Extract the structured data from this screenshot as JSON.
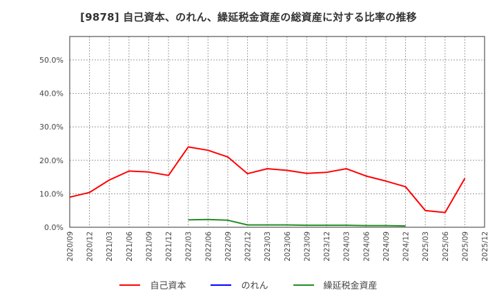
{
  "title": "[9878]  自己資本、のれん、繰延税金資産の総資産に対する比率の推移",
  "chart_data": {
    "type": "line",
    "title": "[9878]  自己資本、のれん、繰延税金資産の総資産に対する比率の推移",
    "xlabel": "",
    "ylabel": "",
    "ylim": [
      0,
      57
    ],
    "yticks": [
      0,
      10,
      20,
      30,
      40,
      50
    ],
    "ytick_labels": [
      "0.0%",
      "10.0%",
      "20.0%",
      "30.0%",
      "40.0%",
      "50.0%"
    ],
    "grid": true,
    "legend_position": "bottom",
    "categories": [
      "2020/09",
      "2020/12",
      "2021/03",
      "2021/06",
      "2021/09",
      "2021/12",
      "2022/03",
      "2022/06",
      "2022/09",
      "2022/12",
      "2023/03",
      "2023/06",
      "2023/09",
      "2023/12",
      "2024/03",
      "2024/06",
      "2024/09",
      "2024/12",
      "2025/03",
      "2025/06",
      "2025/09",
      "2025/12"
    ],
    "series": [
      {
        "name": "自己資本",
        "color": "#ff0000",
        "values": [
          9.0,
          10.4,
          14.1,
          16.8,
          16.5,
          15.5,
          24.0,
          23.0,
          21.0,
          16.0,
          17.5,
          17.0,
          16.1,
          16.4,
          17.5,
          15.3,
          13.8,
          12.1,
          5.0,
          4.4,
          14.6,
          null
        ]
      },
      {
        "name": "のれん",
        "color": "#0000ff",
        "values": [
          null,
          null,
          null,
          null,
          null,
          null,
          null,
          null,
          null,
          null,
          null,
          null,
          null,
          null,
          null,
          null,
          null,
          null,
          null,
          null,
          null,
          null
        ]
      },
      {
        "name": "繰延税金資産",
        "color": "#228b22",
        "values": [
          null,
          null,
          null,
          null,
          null,
          null,
          2.2,
          2.3,
          2.1,
          0.7,
          0.7,
          0.7,
          0.6,
          0.6,
          0.6,
          0.5,
          0.5,
          0.4,
          null,
          null,
          null,
          null
        ]
      }
    ]
  },
  "legend": [
    {
      "label": "自己資本",
      "color": "#ff0000"
    },
    {
      "label": "のれん",
      "color": "#0000ff"
    },
    {
      "label": "繰延税金資産",
      "color": "#228b22"
    }
  ]
}
